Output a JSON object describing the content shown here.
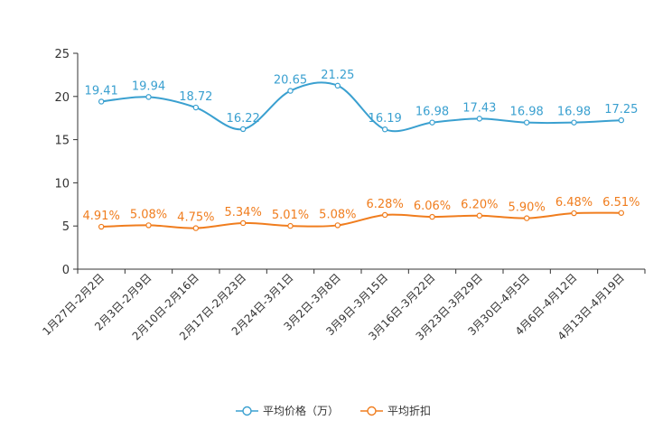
{
  "chart_data": {
    "type": "line",
    "categories": [
      "1月27日-2月2日",
      "2月3日-2月9日",
      "2月10日-2月16日",
      "2月17日-2月23日",
      "2月24日-3月1日",
      "3月2日-3月8日",
      "3月9日-3月15日",
      "3月16日-3月22日",
      "3月23日-3月29日",
      "3月30日-4月5日",
      "4月6日-4月12日",
      "4月13日-4月19日"
    ],
    "series": [
      {
        "name": "平均价格（万）",
        "color": "#3aa0d0",
        "values": [
          19.41,
          19.94,
          18.72,
          16.22,
          20.65,
          21.25,
          16.19,
          16.98,
          17.43,
          16.98,
          16.98,
          17.25
        ],
        "labels": [
          "19.41",
          "19.94",
          "18.72",
          "16.22",
          "20.65",
          "21.25",
          "16.19",
          "16.98",
          "17.43",
          "16.98",
          "16.98",
          "17.25"
        ]
      },
      {
        "name": "平均折扣",
        "color": "#f07d1e",
        "values": [
          4.91,
          5.08,
          4.75,
          5.34,
          5.01,
          5.08,
          6.28,
          6.06,
          6.2,
          5.9,
          6.48,
          6.51
        ],
        "labels": [
          "4.91%",
          "5.08%",
          "4.75%",
          "5.34%",
          "5.01%",
          "5.08%",
          "6.28%",
          "6.06%",
          "6.20%",
          "5.90%",
          "6.48%",
          "6.51%"
        ]
      }
    ],
    "yticks": [
      0,
      5,
      10,
      15,
      20,
      25
    ],
    "ylim": [
      0,
      25
    ],
    "legend_position": "bottom-center"
  }
}
